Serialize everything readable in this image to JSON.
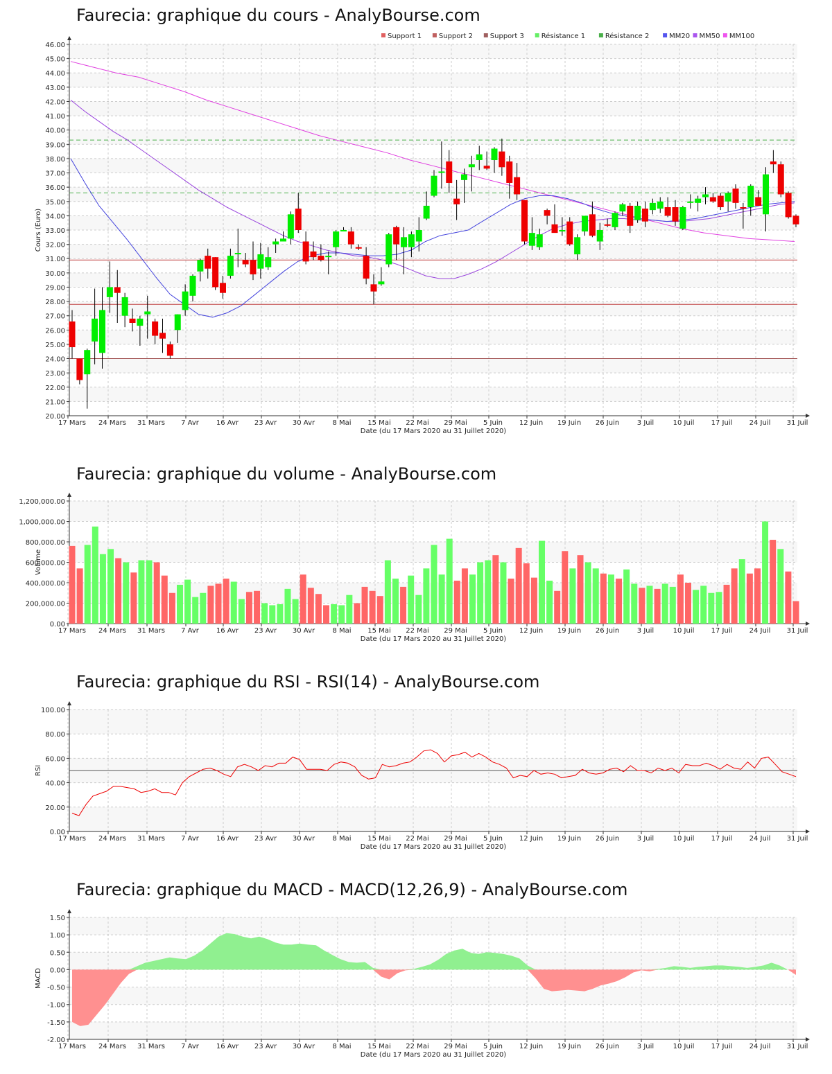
{
  "labels": {
    "x_ticks": [
      "17 Mars",
      "24 Mars",
      "31 Mars",
      "7 Avr",
      "16 Avr",
      "23 Avr",
      "30 Avr",
      "8 Mai",
      "15 Mai",
      "22 Mai",
      "29 Mai",
      "5 Juin",
      "12 Juin",
      "19 Juin",
      "26 Juin",
      "3 Juil",
      "10 Juil",
      "17 Juil",
      "24 Juil",
      "31 Juil"
    ],
    "x_axis": "Date (du 17 Mars 2020 au 31 Juillet 2020)"
  },
  "colors": {
    "up": "#00ee00",
    "down": "#ee0000",
    "vol_up": "#66ff66",
    "vol_down": "#ff6666",
    "support": "#c04040",
    "resistance": "#4ab04a",
    "mm20": "#4444dd",
    "mm50": "#9944dd",
    "mm100": "#e040e0",
    "rsi": "#ee0000",
    "macd_pos": "#90f090",
    "macd_neg": "#ff9090"
  },
  "chart_data": [
    {
      "type": "candlestick",
      "title": "Faurecia: graphique du cours - AnalyBourse.com",
      "ylabel": "Cours (Euro)",
      "xlabel": "Date (du 17 Mars 2020 au 31 Juillet 2020)",
      "ylim": [
        20,
        46
      ],
      "y_ticks": [
        "20.00",
        "21.00",
        "22.00",
        "23.00",
        "24.00",
        "25.00",
        "26.00",
        "27.00",
        "28.00",
        "29.00",
        "30.00",
        "31.00",
        "32.00",
        "33.00",
        "34.00",
        "35.00",
        "36.00",
        "37.00",
        "38.00",
        "39.00",
        "40.00",
        "41.00",
        "42.00",
        "43.00",
        "44.00",
        "45.00",
        "46.00"
      ],
      "legend": [
        "Support 1",
        "Support 2",
        "Support 3",
        "Résistance 1",
        "Résistance 2",
        "MM20",
        "MM50",
        "MM100"
      ],
      "legend_colors": [
        "#e06060",
        "#c06060",
        "#a06060",
        "#66ee66",
        "#4ab04a",
        "#5555ee",
        "#aa55ee",
        "#ee55ee"
      ],
      "levels": {
        "support1": 30.9,
        "support2": 27.8,
        "support3": 24.0,
        "resistance1": 35.6,
        "resistance2": 39.3
      },
      "candles": [
        {
          "o": 26.6,
          "h": 27.4,
          "l": 24.0,
          "c": 24.8
        },
        {
          "o": 24.0,
          "h": 24.0,
          "l": 22.2,
          "c": 22.5
        },
        {
          "o": 22.9,
          "h": 24.7,
          "l": 20.5,
          "c": 24.6
        },
        {
          "o": 25.2,
          "h": 28.9,
          "l": 23.6,
          "c": 26.8
        },
        {
          "o": 24.4,
          "h": 29.0,
          "l": 23.3,
          "c": 27.4
        },
        {
          "o": 28.3,
          "h": 30.8,
          "l": 27.2,
          "c": 29.0
        },
        {
          "o": 29.0,
          "h": 30.2,
          "l": 26.5,
          "c": 28.6
        },
        {
          "o": 27.0,
          "h": 28.6,
          "l": 26.2,
          "c": 28.3
        },
        {
          "o": 26.8,
          "h": 27.5,
          "l": 25.9,
          "c": 26.5
        },
        {
          "o": 26.3,
          "h": 27.0,
          "l": 24.9,
          "c": 26.8
        },
        {
          "o": 27.1,
          "h": 28.4,
          "l": 25.4,
          "c": 27.3
        },
        {
          "o": 26.6,
          "h": 26.8,
          "l": 25.0,
          "c": 25.6
        },
        {
          "o": 25.8,
          "h": 26.8,
          "l": 24.4,
          "c": 25.4
        },
        {
          "o": 25.0,
          "h": 25.2,
          "l": 24.0,
          "c": 24.2
        },
        {
          "o": 26.0,
          "h": 27.1,
          "l": 25.1,
          "c": 27.1
        },
        {
          "o": 27.4,
          "h": 29.2,
          "l": 27.0,
          "c": 28.7
        },
        {
          "o": 28.4,
          "h": 29.9,
          "l": 28.0,
          "c": 29.8
        },
        {
          "o": 30.1,
          "h": 31.0,
          "l": 29.4,
          "c": 30.9
        },
        {
          "o": 31.2,
          "h": 31.7,
          "l": 29.6,
          "c": 30.3
        },
        {
          "o": 31.1,
          "h": 31.1,
          "l": 28.8,
          "c": 29.0
        },
        {
          "o": 29.3,
          "h": 29.8,
          "l": 28.2,
          "c": 28.6
        },
        {
          "o": 29.8,
          "h": 31.7,
          "l": 29.6,
          "c": 31.2
        },
        {
          "o": 31.3,
          "h": 33.1,
          "l": 30.4,
          "c": 31.4
        },
        {
          "o": 30.9,
          "h": 31.4,
          "l": 30.4,
          "c": 30.6
        },
        {
          "o": 30.9,
          "h": 32.2,
          "l": 29.5,
          "c": 29.9
        },
        {
          "o": 30.3,
          "h": 32.1,
          "l": 29.6,
          "c": 31.3
        },
        {
          "o": 30.4,
          "h": 31.8,
          "l": 30.2,
          "c": 31.1
        },
        {
          "o": 32.0,
          "h": 32.4,
          "l": 31.4,
          "c": 32.2
        },
        {
          "o": 32.2,
          "h": 32.9,
          "l": 32.2,
          "c": 32.4
        },
        {
          "o": 32.4,
          "h": 34.3,
          "l": 32.0,
          "c": 34.1
        },
        {
          "o": 34.5,
          "h": 35.6,
          "l": 32.8,
          "c": 33.0
        },
        {
          "o": 32.2,
          "h": 32.9,
          "l": 30.6,
          "c": 30.8
        },
        {
          "o": 31.5,
          "h": 32.2,
          "l": 30.9,
          "c": 31.1
        },
        {
          "o": 31.2,
          "h": 32.0,
          "l": 30.8,
          "c": 30.9
        },
        {
          "o": 31.1,
          "h": 31.5,
          "l": 29.9,
          "c": 31.2
        },
        {
          "o": 31.8,
          "h": 33.0,
          "l": 31.2,
          "c": 32.9
        },
        {
          "o": 33.0,
          "h": 33.2,
          "l": 32.9,
          "c": 33.0
        },
        {
          "o": 32.9,
          "h": 33.2,
          "l": 31.7,
          "c": 32.0
        },
        {
          "o": 31.8,
          "h": 32.0,
          "l": 31.6,
          "c": 31.7
        },
        {
          "o": 31.2,
          "h": 31.8,
          "l": 29.2,
          "c": 29.6
        },
        {
          "o": 29.2,
          "h": 29.9,
          "l": 27.8,
          "c": 28.7
        },
        {
          "o": 29.2,
          "h": 30.4,
          "l": 29.1,
          "c": 29.4
        },
        {
          "o": 30.6,
          "h": 32.8,
          "l": 30.4,
          "c": 32.7
        },
        {
          "o": 33.2,
          "h": 33.3,
          "l": 30.9,
          "c": 32.0
        },
        {
          "o": 31.8,
          "h": 33.2,
          "l": 29.9,
          "c": 32.5
        },
        {
          "o": 31.8,
          "h": 32.9,
          "l": 31.1,
          "c": 32.7
        },
        {
          "o": 32.2,
          "h": 33.9,
          "l": 31.5,
          "c": 33.0
        },
        {
          "o": 33.8,
          "h": 35.7,
          "l": 33.7,
          "c": 34.7
        },
        {
          "o": 35.4,
          "h": 37.2,
          "l": 35.3,
          "c": 36.8
        },
        {
          "o": 37.1,
          "h": 39.2,
          "l": 35.9,
          "c": 37.1
        },
        {
          "o": 37.8,
          "h": 38.6,
          "l": 35.6,
          "c": 36.3
        },
        {
          "o": 35.2,
          "h": 36.5,
          "l": 33.7,
          "c": 34.8
        },
        {
          "o": 36.5,
          "h": 37.3,
          "l": 34.9,
          "c": 36.9
        },
        {
          "o": 37.4,
          "h": 38.2,
          "l": 35.7,
          "c": 37.6
        },
        {
          "o": 37.9,
          "h": 38.9,
          "l": 37.2,
          "c": 38.3
        },
        {
          "o": 37.5,
          "h": 38.5,
          "l": 37.2,
          "c": 37.3
        },
        {
          "o": 37.9,
          "h": 38.8,
          "l": 37.0,
          "c": 38.7
        },
        {
          "o": 38.5,
          "h": 39.4,
          "l": 36.8,
          "c": 37.4
        },
        {
          "o": 37.8,
          "h": 38.2,
          "l": 35.2,
          "c": 36.3
        },
        {
          "o": 36.7,
          "h": 37.7,
          "l": 35.1,
          "c": 35.5
        },
        {
          "o": 35.1,
          "h": 35.1,
          "l": 32.0,
          "c": 32.2
        },
        {
          "o": 31.9,
          "h": 33.9,
          "l": 31.6,
          "c": 32.8
        },
        {
          "o": 31.8,
          "h": 33.1,
          "l": 31.6,
          "c": 32.7
        },
        {
          "o": 34.4,
          "h": 34.5,
          "l": 33.4,
          "c": 34.0
        },
        {
          "o": 33.4,
          "h": 34.8,
          "l": 32.9,
          "c": 32.8
        },
        {
          "o": 32.9,
          "h": 33.9,
          "l": 32.6,
          "c": 33.0
        },
        {
          "o": 33.6,
          "h": 33.9,
          "l": 31.9,
          "c": 32.0
        },
        {
          "o": 31.3,
          "h": 32.7,
          "l": 30.9,
          "c": 32.5
        },
        {
          "o": 32.9,
          "h": 33.9,
          "l": 32.6,
          "c": 34.0
        },
        {
          "o": 34.1,
          "h": 35.0,
          "l": 32.5,
          "c": 32.6
        },
        {
          "o": 32.2,
          "h": 33.5,
          "l": 31.6,
          "c": 33.0
        },
        {
          "o": 33.4,
          "h": 33.8,
          "l": 33.2,
          "c": 33.3
        },
        {
          "o": 33.2,
          "h": 34.3,
          "l": 33.0,
          "c": 34.2
        },
        {
          "o": 34.3,
          "h": 34.9,
          "l": 34.0,
          "c": 34.8
        },
        {
          "o": 34.7,
          "h": 34.9,
          "l": 32.8,
          "c": 33.3
        },
        {
          "o": 33.7,
          "h": 35.0,
          "l": 33.5,
          "c": 34.7
        },
        {
          "o": 34.5,
          "h": 35.0,
          "l": 33.2,
          "c": 33.6
        },
        {
          "o": 34.4,
          "h": 35.2,
          "l": 34.1,
          "c": 34.9
        },
        {
          "o": 34.5,
          "h": 35.3,
          "l": 34.2,
          "c": 35.0
        },
        {
          "o": 34.6,
          "h": 35.3,
          "l": 33.9,
          "c": 34.0
        },
        {
          "o": 34.6,
          "h": 35.1,
          "l": 33.3,
          "c": 33.6
        },
        {
          "o": 33.1,
          "h": 34.7,
          "l": 33.0,
          "c": 34.6
        },
        {
          "o": 34.9,
          "h": 35.5,
          "l": 34.5,
          "c": 35.0
        },
        {
          "o": 34.9,
          "h": 35.4,
          "l": 34.3,
          "c": 35.2
        },
        {
          "o": 35.3,
          "h": 36.0,
          "l": 34.8,
          "c": 35.5
        },
        {
          "o": 35.3,
          "h": 35.6,
          "l": 34.9,
          "c": 35.0
        },
        {
          "o": 35.4,
          "h": 35.6,
          "l": 34.4,
          "c": 34.6
        },
        {
          "o": 35.0,
          "h": 35.7,
          "l": 34.3,
          "c": 35.6
        },
        {
          "o": 35.9,
          "h": 36.2,
          "l": 34.5,
          "c": 34.9
        },
        {
          "o": 34.6,
          "h": 34.9,
          "l": 33.1,
          "c": 34.5
        },
        {
          "o": 34.6,
          "h": 36.2,
          "l": 34.0,
          "c": 36.1
        },
        {
          "o": 35.3,
          "h": 35.8,
          "l": 34.7,
          "c": 34.7
        },
        {
          "o": 34.1,
          "h": 37.4,
          "l": 32.9,
          "c": 36.9
        },
        {
          "o": 37.8,
          "h": 38.6,
          "l": 37.0,
          "c": 37.6
        },
        {
          "o": 37.6,
          "h": 37.8,
          "l": 35.3,
          "c": 35.5
        },
        {
          "o": 35.6,
          "h": 35.7,
          "l": 33.8,
          "c": 33.9
        },
        {
          "o": 34.0,
          "h": 34.1,
          "l": 33.2,
          "c": 33.4
        }
      ],
      "mm20": [
        38.0,
        36.3,
        34.7,
        33.5,
        32.3,
        31.0,
        29.7,
        28.5,
        27.8,
        27.1,
        26.9,
        27.2,
        27.7,
        28.5,
        29.3,
        30.1,
        30.8,
        31.2,
        31.4,
        31.4,
        31.3,
        31.2,
        31.2,
        31.3,
        31.6,
        32.2,
        32.6,
        32.8,
        33.0,
        33.6,
        34.2,
        34.8,
        35.2,
        35.4,
        35.4,
        35.2,
        34.9,
        34.5,
        34.2,
        34.0,
        33.8,
        33.7,
        33.6,
        33.7,
        33.8,
        34.0,
        34.2,
        34.4,
        34.6,
        34.8,
        34.9,
        35.0
      ],
      "mm50": [
        42.1,
        41.3,
        40.6,
        39.9,
        39.3,
        38.6,
        37.9,
        37.2,
        36.5,
        35.8,
        35.2,
        34.6,
        34.1,
        33.6,
        33.1,
        32.6,
        32.2,
        31.9,
        31.6,
        31.4,
        31.2,
        31.1,
        30.9,
        30.6,
        30.2,
        29.8,
        29.6,
        29.6,
        29.9,
        30.3,
        30.8,
        31.4,
        32.0,
        32.6,
        33.1,
        33.4,
        33.6,
        33.7,
        33.8,
        33.8,
        33.7,
        33.7,
        33.6,
        33.6,
        33.7,
        33.8,
        34.0,
        34.2,
        34.4,
        34.6,
        34.8,
        34.9
      ],
      "mm100": [
        44.8,
        44.4,
        44.0,
        43.7,
        43.2,
        42.7,
        42.1,
        41.6,
        41.1,
        40.6,
        40.1,
        39.6,
        39.2,
        38.8,
        38.4,
        37.9,
        37.5,
        37.1,
        36.7,
        36.3,
        35.9,
        35.5,
        35.1,
        34.7,
        34.3,
        33.9,
        33.5,
        33.1,
        32.8,
        32.6,
        32.4,
        32.3,
        32.2
      ]
    },
    {
      "type": "bar",
      "title": "Faurecia: graphique du volume - AnalyBourse.com",
      "ylabel": "Volume",
      "xlabel": "Date (du 17 Mars 2020 au 31 Juillet 2020)",
      "ylim": [
        0,
        1200000
      ],
      "y_ticks": [
        "0.00",
        "200,000.00",
        "400,000.00",
        "600,000.00",
        "800,000.00",
        "1,000,000.00",
        "1,200,000.00"
      ],
      "values": [
        760000,
        540000,
        770000,
        950000,
        680000,
        730000,
        640000,
        600000,
        500000,
        620000,
        620000,
        600000,
        470000,
        300000,
        380000,
        430000,
        260000,
        300000,
        370000,
        390000,
        440000,
        410000,
        240000,
        310000,
        320000,
        200000,
        180000,
        190000,
        340000,
        240000,
        480000,
        350000,
        290000,
        180000,
        190000,
        180000,
        280000,
        200000,
        360000,
        320000,
        270000,
        620000,
        440000,
        360000,
        470000,
        280000,
        540000,
        770000,
        480000,
        830000,
        420000,
        540000,
        480000,
        600000,
        620000,
        670000,
        600000,
        440000,
        740000,
        590000,
        450000,
        810000,
        420000,
        320000,
        710000,
        540000,
        670000,
        600000,
        540000,
        490000,
        480000,
        440000,
        530000,
        390000,
        350000,
        370000,
        340000,
        390000,
        360000,
        480000,
        400000,
        330000,
        370000,
        300000,
        310000,
        380000,
        540000,
        630000,
        490000,
        540000,
        1000000,
        820000,
        730000,
        510000,
        220000
      ]
    },
    {
      "type": "line",
      "title": "Faurecia: graphique du RSI - RSI(14) - AnalyBourse.com",
      "ylabel": "RSI",
      "xlabel": "Date (du 17 Mars 2020 au 31 Juillet 2020)",
      "ylim": [
        0,
        100
      ],
      "y_ticks": [
        "0.00",
        "20.00",
        "40.00",
        "60.00",
        "80.00",
        "100.00"
      ],
      "reference": 50,
      "values": [
        15,
        13,
        22,
        29,
        31,
        33,
        37,
        37,
        36,
        35,
        32,
        33,
        35,
        32,
        32,
        30,
        40,
        45,
        48,
        51,
        52,
        50,
        47,
        45,
        53,
        55,
        53,
        50,
        54,
        53,
        56,
        56,
        61,
        59,
        51,
        51,
        51,
        50,
        55,
        57,
        56,
        53,
        46,
        43,
        44,
        55,
        53,
        54,
        56,
        57,
        61,
        66,
        67,
        64,
        57,
        62,
        63,
        65,
        61,
        64,
        61,
        57,
        55,
        52,
        44,
        46,
        45,
        50,
        47,
        48,
        47,
        44,
        45,
        46,
        51,
        48,
        47,
        48,
        51,
        52,
        49,
        54,
        50,
        50,
        48,
        52,
        50,
        52,
        48,
        55,
        54,
        54,
        56,
        54,
        51,
        55,
        52,
        51,
        57,
        52,
        60,
        61,
        55,
        49,
        47,
        45
      ]
    },
    {
      "type": "area",
      "title": "Faurecia: graphique du MACD - MACD(12,26,9) - AnalyBourse.com",
      "ylabel": "MACD",
      "xlabel": "Date (du 17 Mars 2020 au 31 Juillet 2020)",
      "ylim": [
        -2,
        1.5
      ],
      "y_ticks": [
        "-2.00",
        "-1.50",
        "-1.00",
        "-0.50",
        "0.00",
        "0.50",
        "1.00",
        "1.50"
      ],
      "values": [
        -1.5,
        -1.62,
        -1.58,
        -1.3,
        -1.02,
        -0.7,
        -0.38,
        -0.12,
        0.1,
        0.2,
        0.25,
        0.3,
        0.35,
        0.32,
        0.3,
        0.4,
        0.55,
        0.75,
        0.95,
        1.05,
        1.02,
        0.95,
        0.9,
        0.95,
        0.88,
        0.78,
        0.72,
        0.72,
        0.75,
        0.72,
        0.7,
        0.55,
        0.42,
        0.3,
        0.22,
        0.2,
        0.22,
        0.05,
        -0.2,
        -0.28,
        -0.1,
        -0.02,
        0.02,
        0.08,
        0.15,
        0.28,
        0.45,
        0.55,
        0.6,
        0.48,
        0.45,
        0.5,
        0.48,
        0.45,
        0.4,
        0.32,
        0.12,
        -0.25,
        -0.55,
        -0.62,
        -0.6,
        -0.58,
        -0.6,
        -0.62,
        -0.55,
        -0.45,
        -0.4,
        -0.33,
        -0.22,
        -0.08,
        -0.02,
        -0.05,
        0.02,
        0.05,
        0.1,
        0.08,
        0.05,
        0.08,
        0.1,
        0.12,
        0.12,
        0.1,
        0.08,
        0.05,
        0.08,
        0.12,
        0.2,
        0.12,
        0.0,
        -0.15
      ]
    }
  ]
}
